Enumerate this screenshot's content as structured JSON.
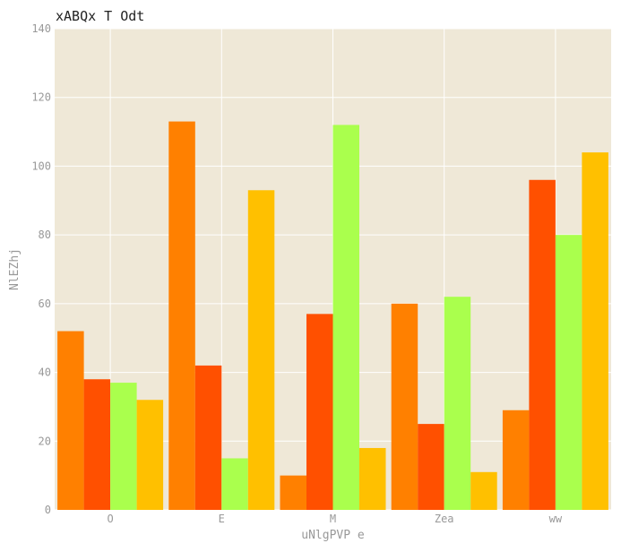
{
  "chart_data": {
    "type": "bar",
    "title": "xABQx T Odt",
    "xlabel": "uNlgPVP  e",
    "ylabel": "NlEZhj",
    "categories": [
      "O",
      "E",
      "M",
      "Zea",
      "ww"
    ],
    "series": [
      {
        "color": "#ff8000",
        "values": [
          52,
          113,
          10,
          60,
          29
        ]
      },
      {
        "color": "#ff5000",
        "values": [
          38,
          42,
          57,
          25,
          96
        ]
      },
      {
        "color": "#aaff4d",
        "values": [
          37,
          15,
          112,
          62,
          80
        ]
      },
      {
        "color": "#ffc000",
        "values": [
          32,
          93,
          18,
          11,
          104
        ]
      }
    ],
    "ylim": [
      0,
      140
    ],
    "yticks": [
      0,
      20,
      40,
      60,
      80,
      100,
      120,
      140
    ],
    "grid": true,
    "legend": "none",
    "background": "#efe8d7",
    "grid_color": "#ffffff"
  }
}
